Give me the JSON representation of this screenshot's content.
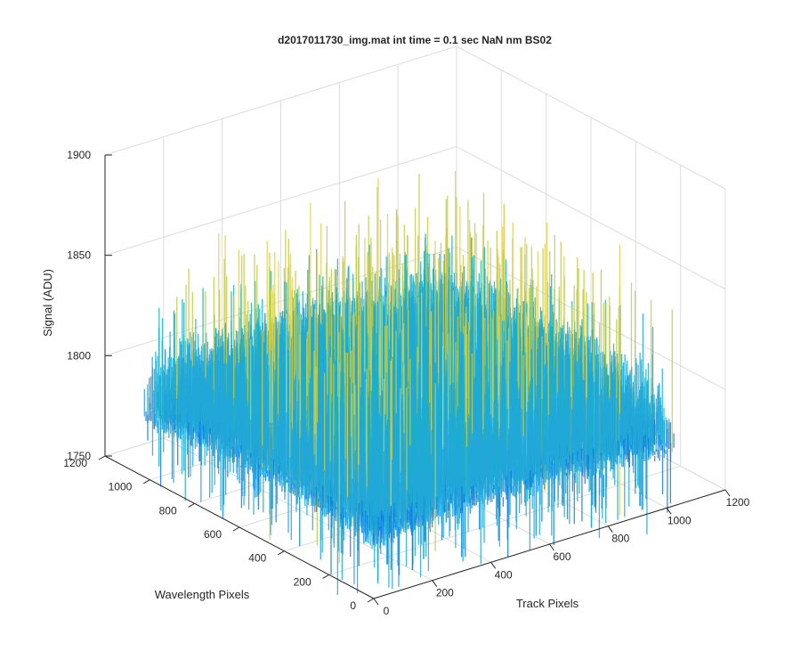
{
  "chart_data": {
    "type": "surface",
    "title": "d2017011730_img.mat int time = 0.1 sec  NaN nm BS02",
    "xlabel": "Track Pixels",
    "ylabel": "Wavelength Pixels",
    "zlabel": "Signal (ADU)",
    "xlim": [
      0,
      1200
    ],
    "ylim": [
      0,
      1200
    ],
    "zlim": [
      1750,
      1900
    ],
    "xticks": [
      "0",
      "200",
      "400",
      "600",
      "800",
      "1000",
      "1200"
    ],
    "yticks": [
      "0",
      "200",
      "400",
      "600",
      "800",
      "1000",
      "1200"
    ],
    "zticks": [
      "1750",
      "1800",
      "1850",
      "1900"
    ],
    "grid": true,
    "colormap": "parula",
    "colors": {
      "low": "#0f7fe0",
      "mid": "#1ab0c8",
      "high": "#c0cc48",
      "peak": "#e0d050",
      "axis": "#262626",
      "grid": "#dcdcdc"
    },
    "data_extent": {
      "x": [
        0,
        1024
      ],
      "y": [
        0,
        1024
      ]
    },
    "surface_approx": {
      "mean": 1795,
      "noise_range": [
        1760,
        1880
      ],
      "description_of_trend": "signal slightly higher toward center of both axes"
    }
  }
}
